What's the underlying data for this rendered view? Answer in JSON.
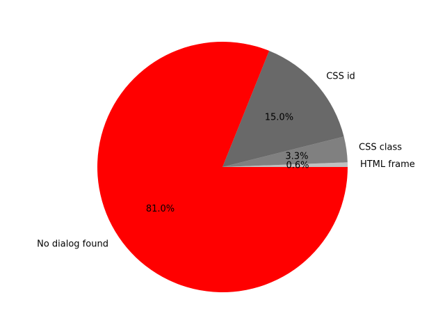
{
  "chart_data": {
    "type": "pie",
    "title": "",
    "slices": [
      {
        "label": "HTML frame",
        "value": 0.6,
        "pct_label": "0.6%",
        "color": "#c0c0c0"
      },
      {
        "label": "CSS class",
        "value": 3.3,
        "pct_label": "3.3%",
        "color": "#808080"
      },
      {
        "label": "CSS id",
        "value": 15.0,
        "pct_label": "15.0%",
        "color": "#696969"
      },
      {
        "label": "No dialog found",
        "value": 81.0,
        "pct_label": "81.0%",
        "color": "#ff0000"
      }
    ],
    "start_angle_deg": 0,
    "direction": "counterclockwise",
    "legend": "none"
  }
}
